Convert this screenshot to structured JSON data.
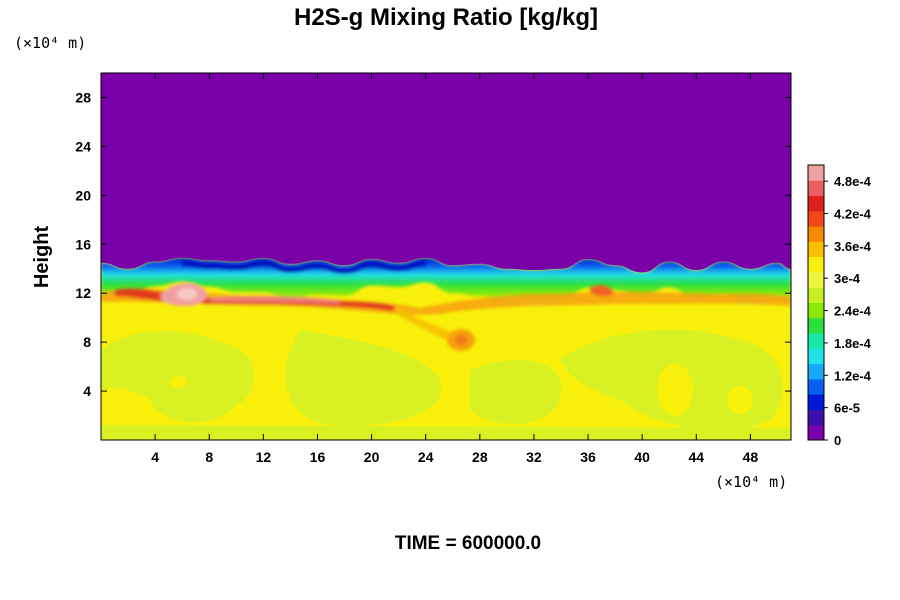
{
  "chart_data": {
    "type": "heatmap",
    "title": "H2S-g Mixing Ratio [kg/kg]",
    "ylabel": "Height",
    "xunits_text": "(×10⁴ m)",
    "yunits_text": "(×10⁴ m)",
    "footer": "TIME = 600000.0",
    "xlim": [
      0,
      51
    ],
    "ylim": [
      0,
      30
    ],
    "xticks": [
      4,
      8,
      12,
      16,
      20,
      24,
      28,
      32,
      36,
      40,
      44,
      48
    ],
    "xtick_labels": [
      "4",
      "8",
      "12",
      "16",
      "20",
      "24",
      "28",
      "32",
      "36",
      "40",
      "44",
      "48"
    ],
    "yticks": [
      4,
      8,
      12,
      16,
      20,
      24,
      28
    ],
    "ytick_labels": [
      "4",
      "8",
      "12",
      "16",
      "20",
      "24",
      "28"
    ],
    "colorbar": {
      "min": 0,
      "max": 0.00051,
      "ticks": [
        0,
        6e-05,
        0.00012,
        0.00018,
        0.00024,
        0.0003,
        0.00036,
        0.00042,
        0.00048
      ],
      "tick_labels": [
        "0",
        "6e-5",
        "1.2e-4",
        "1.8e-4",
        "2.4e-4",
        "3e-4",
        "3.6e-4",
        "4.2e-4",
        "4.8e-4"
      ],
      "colors": [
        "#7a00a8",
        "#3b0fb0",
        "#0018d8",
        "#0a5ef0",
        "#18a8f8",
        "#20e0e8",
        "#18e8a8",
        "#28e040",
        "#88e808",
        "#c8f020",
        "#ecf840",
        "#f8f00a",
        "#f8c000",
        "#f88800",
        "#f04818",
        "#e02020",
        "#e86060",
        "#f0a0a0"
      ]
    },
    "field_summary": {
      "upper_region_value": 0,
      "interface_height": 13.5,
      "lower_region_value": 0.00037,
      "lower_patch_value": 0.00033,
      "peak_value": 0.00051,
      "peak_location": [
        6.5,
        11.5
      ]
    },
    "interface_profile": {
      "x": [
        0,
        2,
        4,
        6,
        8,
        10,
        12,
        14,
        16,
        18,
        20,
        22,
        24,
        26,
        28,
        30,
        32,
        34,
        36,
        38,
        40,
        42,
        44,
        46,
        48,
        50,
        51
      ],
      "y": [
        14.5,
        14.0,
        14.6,
        14.9,
        14.7,
        14.6,
        14.9,
        14.4,
        14.7,
        14.3,
        14.8,
        14.5,
        14.9,
        14.3,
        14.4,
        14.0,
        13.9,
        14.0,
        14.8,
        14.3,
        13.7,
        14.6,
        13.9,
        14.6,
        14.0,
        14.5,
        14.0
      ]
    }
  }
}
